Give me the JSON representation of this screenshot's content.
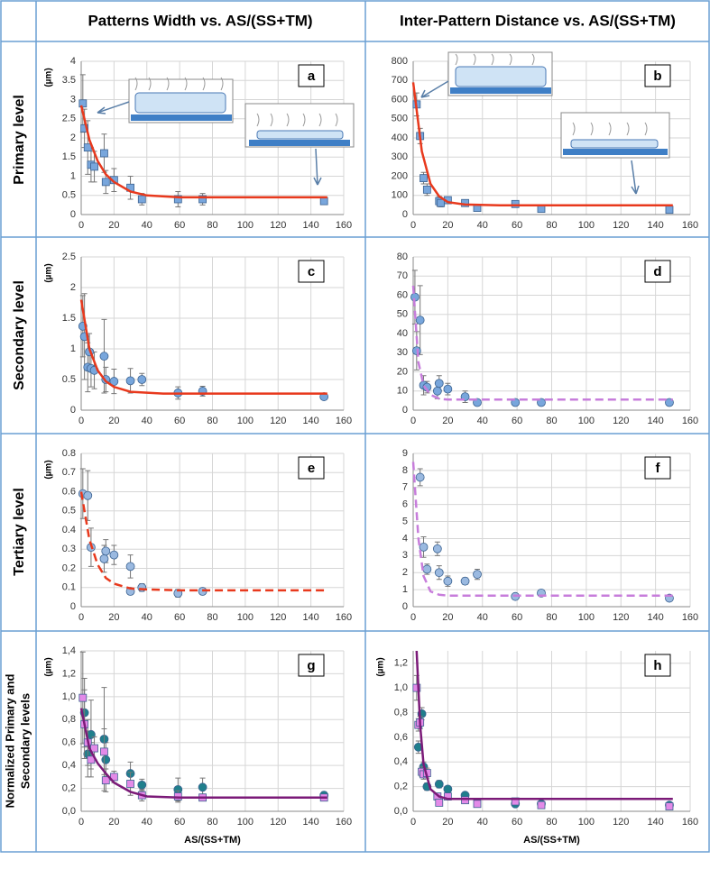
{
  "header": {
    "columns": [
      "Patterns Width vs. AS/(SS+TM)",
      "Inter-Pattern Distance vs. AS/(SS+TM)"
    ],
    "rows": [
      "Primary level",
      "Secondary level",
      "Tertiary level",
      [
        "Normalized Primary and",
        "Secondary levels"
      ]
    ]
  },
  "chart_data": [
    {
      "type": "scatter",
      "letter": "a",
      "ylabel": "(µm)",
      "grid": true,
      "xlim": [
        0,
        160
      ],
      "xticks": [
        0,
        20,
        40,
        60,
        80,
        100,
        120,
        140,
        160
      ],
      "ylim": [
        0,
        4
      ],
      "yticks": [
        0,
        0.5,
        1,
        1.5,
        2,
        2.5,
        3,
        3.5,
        4
      ],
      "series": [
        {
          "style": "marker",
          "marker": "square",
          "color": "#78a6dc",
          "x": [
            1,
            2,
            4,
            6,
            8,
            14,
            15,
            20,
            30,
            37,
            59,
            74,
            148
          ],
          "values": [
            2.9,
            2.25,
            1.75,
            1.3,
            1.25,
            1.6,
            0.85,
            0.9,
            0.7,
            0.4,
            0.4,
            0.4,
            0.35
          ],
          "errors": [
            0.75,
            0.5,
            0.7,
            0.45,
            0.4,
            0.5,
            0.3,
            0.3,
            0.3,
            0.15,
            0.2,
            0.15,
            0.05
          ]
        },
        {
          "style": "line",
          "dash": false,
          "color": "#e8391d",
          "x": [
            0,
            5,
            10,
            15,
            20,
            30,
            40,
            60,
            100,
            150
          ],
          "values": [
            2.85,
            1.95,
            1.4,
            1.05,
            0.85,
            0.6,
            0.5,
            0.45,
            0.45,
            0.45
          ]
        }
      ]
    },
    {
      "type": "scatter",
      "letter": "b",
      "grid": true,
      "xlim": [
        0,
        160
      ],
      "xticks": [
        0,
        20,
        40,
        60,
        80,
        100,
        120,
        140,
        160
      ],
      "ylim": [
        0,
        800
      ],
      "yticks": [
        0,
        100,
        200,
        300,
        400,
        500,
        600,
        700,
        800
      ],
      "series": [
        {
          "style": "marker",
          "marker": "square",
          "color": "#78a6dc",
          "x": [
            2,
            4,
            6,
            8,
            15,
            16,
            20,
            30,
            37,
            59,
            74,
            148
          ],
          "values": [
            575,
            410,
            190,
            130,
            70,
            60,
            75,
            60,
            35,
            55,
            30,
            25
          ],
          "errors": [
            60,
            40,
            30,
            30,
            25,
            20,
            15,
            10,
            5,
            10,
            5,
            5
          ]
        },
        {
          "style": "line",
          "dash": false,
          "color": "#e8391d",
          "x": [
            0,
            5,
            10,
            15,
            20,
            30,
            50,
            150
          ],
          "values": [
            690,
            330,
            160,
            95,
            65,
            52,
            48,
            48
          ]
        }
      ]
    },
    {
      "type": "scatter",
      "letter": "c",
      "ylabel": "(µm)",
      "grid": true,
      "xlim": [
        0,
        160
      ],
      "xticks": [
        0,
        20,
        40,
        60,
        80,
        100,
        120,
        140,
        160
      ],
      "ylim": [
        0,
        2.5
      ],
      "yticks": [
        0,
        0.5,
        1,
        1.5,
        2,
        2.5
      ],
      "series": [
        {
          "style": "marker",
          "marker": "circle",
          "color": "#78a6dc",
          "x": [
            1,
            2,
            4,
            5,
            6,
            8,
            14,
            15,
            20,
            30,
            37,
            59,
            74,
            148
          ],
          "values": [
            1.37,
            1.2,
            0.7,
            0.95,
            0.68,
            0.65,
            0.88,
            0.5,
            0.47,
            0.48,
            0.5,
            0.28,
            0.31,
            0.22
          ],
          "errors": [
            0.5,
            0.7,
            0.4,
            0.3,
            0.3,
            0.3,
            0.6,
            0.2,
            0.2,
            0.2,
            0.1,
            0.1,
            0.08,
            0.05
          ]
        },
        {
          "style": "line",
          "dash": false,
          "color": "#e8391d",
          "x": [
            0,
            5,
            10,
            15,
            20,
            30,
            50,
            150
          ],
          "values": [
            1.8,
            1.0,
            0.65,
            0.47,
            0.38,
            0.3,
            0.27,
            0.27
          ]
        }
      ]
    },
    {
      "type": "scatter",
      "letter": "d",
      "grid": true,
      "xlim": [
        0,
        160
      ],
      "xticks": [
        0,
        20,
        40,
        60,
        80,
        100,
        120,
        140,
        160
      ],
      "ylim": [
        0,
        80
      ],
      "yticks": [
        0,
        10,
        20,
        30,
        40,
        50,
        60,
        70,
        80
      ],
      "series": [
        {
          "style": "marker",
          "marker": "circle",
          "color": "#78a6dc",
          "x": [
            1,
            2,
            4,
            6,
            8,
            14,
            15,
            20,
            30,
            37,
            59,
            74,
            148
          ],
          "values": [
            59,
            31,
            47,
            13,
            12,
            10,
            14,
            11,
            7,
            4,
            4,
            4,
            4
          ],
          "errors": [
            14,
            10,
            18,
            5,
            3,
            4,
            4,
            3,
            3,
            1,
            1,
            1,
            1
          ]
        },
        {
          "style": "line",
          "dash": true,
          "color": "#c77ddb",
          "x": [
            0,
            3,
            6,
            10,
            15,
            20,
            30,
            150
          ],
          "values": [
            65,
            25,
            13,
            8,
            6,
            5.5,
            5.5,
            5.5
          ]
        }
      ]
    },
    {
      "type": "scatter",
      "letter": "e",
      "ylabel": "(µm)",
      "grid": true,
      "xlim": [
        0,
        160
      ],
      "xticks": [
        0,
        20,
        40,
        60,
        80,
        100,
        120,
        140,
        160
      ],
      "ylim": [
        0,
        0.8
      ],
      "yticks": [
        0,
        0.1,
        0.2,
        0.3,
        0.4,
        0.5,
        0.6,
        0.7,
        0.8
      ],
      "series": [
        {
          "style": "marker",
          "marker": "circle",
          "color": "#9ab9e0",
          "x": [
            1,
            4,
            6,
            14,
            15,
            20,
            30,
            30,
            37,
            59,
            74
          ],
          "values": [
            0.59,
            0.58,
            0.31,
            0.25,
            0.29,
            0.27,
            0.21,
            0.08,
            0.1,
            0.07,
            0.08
          ],
          "errors": [
            0.13,
            0.13,
            0.1,
            0.07,
            0.06,
            0.05,
            0.06,
            0.01,
            0.02,
            0.02,
            0.01
          ]
        },
        {
          "style": "line",
          "dash": true,
          "color": "#e8391d",
          "x": [
            0,
            5,
            10,
            15,
            20,
            30,
            40,
            60,
            150
          ],
          "values": [
            0.6,
            0.35,
            0.22,
            0.15,
            0.12,
            0.095,
            0.09,
            0.085,
            0.085
          ]
        }
      ]
    },
    {
      "type": "scatter",
      "letter": "f",
      "grid": true,
      "xlim": [
        0,
        160
      ],
      "xticks": [
        0,
        20,
        40,
        60,
        80,
        100,
        120,
        140,
        160
      ],
      "ylim": [
        0,
        9
      ],
      "yticks": [
        0,
        1,
        2,
        3,
        4,
        5,
        6,
        7,
        8,
        9
      ],
      "series": [
        {
          "style": "marker",
          "marker": "circle",
          "color": "#9ab9e0",
          "x": [
            4,
            6,
            8,
            14,
            15,
            20,
            30,
            37,
            59,
            74,
            148
          ],
          "values": [
            7.6,
            3.5,
            2.2,
            3.4,
            2.0,
            1.5,
            1.5,
            1.9,
            0.6,
            0.8,
            0.5
          ],
          "errors": [
            0.5,
            0.6,
            0.3,
            0.4,
            0.4,
            0.3,
            0.2,
            0.3,
            0.1,
            0.1,
            0.1
          ]
        },
        {
          "style": "line",
          "dash": true,
          "color": "#c77ddb",
          "x": [
            0,
            3,
            6,
            10,
            15,
            20,
            30,
            150
          ],
          "values": [
            8.5,
            4,
            1.8,
            0.9,
            0.7,
            0.65,
            0.65,
            0.65
          ]
        }
      ]
    },
    {
      "type": "scatter",
      "letter": "g",
      "ylabel": "(µm)",
      "xlabel": "AS/(SS+TM)",
      "grid": true,
      "xlim": [
        0,
        160
      ],
      "xticks": [
        0,
        20,
        40,
        60,
        80,
        100,
        120,
        140,
        160
      ],
      "ylim": [
        0,
        1.4
      ],
      "yticks": [
        {
          "value": 0,
          "label": "0,0"
        },
        {
          "value": 0.2,
          "label": "0,2"
        },
        {
          "value": 0.4,
          "label": "0,4"
        },
        {
          "value": 0.6,
          "label": "0,6"
        },
        {
          "value": 0.8,
          "label": "0,8"
        },
        {
          "value": 1,
          "label": "1,0"
        },
        {
          "value": 1.2,
          "label": "1,2"
        },
        {
          "value": 1.4,
          "label": "1,4"
        }
      ],
      "series": [
        {
          "style": "marker",
          "marker": "circle",
          "color": "#1f7f8c",
          "x": [
            2,
            4,
            6,
            14,
            15,
            30,
            37,
            59,
            74,
            148
          ],
          "values": [
            0.86,
            0.5,
            0.67,
            0.63,
            0.45,
            0.33,
            0.23,
            0.19,
            0.21,
            0.14
          ],
          "errors": [
            0.3,
            0.2,
            0.3,
            0.45,
            0.15,
            0.1,
            0.05,
            0.1,
            0.08,
            0.03
          ]
        },
        {
          "style": "marker",
          "marker": "square",
          "color": "#e38ae8",
          "x": [
            1,
            2,
            4,
            6,
            8,
            14,
            15,
            20,
            30,
            37,
            59,
            74,
            148
          ],
          "values": [
            0.99,
            0.76,
            0.6,
            0.45,
            0.55,
            0.52,
            0.27,
            0.3,
            0.24,
            0.14,
            0.13,
            0.12,
            0.12
          ],
          "errors": [
            0.4,
            0.3,
            0.2,
            0.15,
            0.1,
            0.2,
            0.1,
            0.05,
            0.1,
            0.05,
            0.05,
            0.03,
            0.02
          ]
        },
        {
          "style": "line",
          "dash": false,
          "color": "#7b1a78",
          "x": [
            0,
            5,
            10,
            15,
            20,
            30,
            40,
            60,
            150
          ],
          "values": [
            0.9,
            0.55,
            0.42,
            0.33,
            0.25,
            0.17,
            0.13,
            0.12,
            0.12
          ]
        }
      ]
    },
    {
      "type": "scatter",
      "letter": "h",
      "ylabel": "(µm)",
      "xlabel": "AS/(SS+TM)",
      "grid": true,
      "xlim": [
        0,
        160
      ],
      "xticks": [
        0,
        20,
        40,
        60,
        80,
        100,
        120,
        140,
        160
      ],
      "ylim": [
        0,
        1.3
      ],
      "yticks": [
        {
          "value": 0,
          "label": "0,0"
        },
        {
          "value": 0.2,
          "label": "0,2"
        },
        {
          "value": 0.4,
          "label": "0,4"
        },
        {
          "value": 0.6,
          "label": "0,6"
        },
        {
          "value": 0.8,
          "label": "0,8"
        },
        {
          "value": 1,
          "label": "1,0"
        },
        {
          "value": 1.2,
          "label": "1,2"
        }
      ],
      "series": [
        {
          "style": "marker",
          "marker": "circle",
          "color": "#1f7f8c",
          "x": [
            3,
            5,
            6,
            8,
            15,
            20,
            30,
            59,
            74,
            148
          ],
          "values": [
            0.52,
            0.79,
            0.36,
            0.2,
            0.22,
            0.18,
            0.13,
            0.06,
            0.06,
            0.05
          ],
          "errors": [
            0.05,
            0.05,
            0.04,
            0.03,
            0.03,
            0.02,
            0.02,
            0.01,
            0.01,
            0.01
          ]
        },
        {
          "style": "marker",
          "marker": "square",
          "color": "#e38ae8",
          "x": [
            2,
            3,
            4,
            5,
            6,
            8,
            14,
            15,
            20,
            30,
            37,
            59,
            74,
            148
          ],
          "values": [
            1.0,
            0.7,
            0.72,
            0.32,
            0.3,
            0.31,
            0.12,
            0.07,
            0.12,
            0.09,
            0.06,
            0.08,
            0.05,
            0.04
          ],
          "errors": [
            0.1,
            0.05,
            0.05,
            0.04,
            0.04,
            0.04,
            0.02,
            0.01,
            0.02,
            0.02,
            0.01,
            0.01,
            0.01,
            0.01
          ]
        },
        {
          "style": "line",
          "dash": false,
          "color": "#7b1a78",
          "x": [
            2,
            4,
            6,
            10,
            15,
            20,
            30,
            150
          ],
          "values": [
            1.3,
            0.7,
            0.38,
            0.18,
            0.12,
            0.1,
            0.1,
            0.1
          ]
        }
      ]
    }
  ]
}
